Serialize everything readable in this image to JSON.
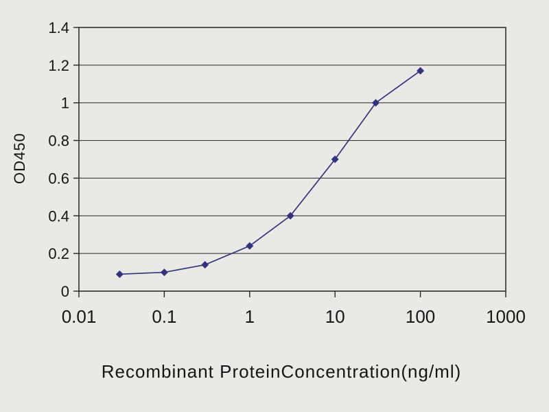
{
  "chart_data": {
    "type": "line",
    "title": "",
    "xlabel": "Recombinant ProteinConcentration(ng/ml)",
    "ylabel": "OD450",
    "xscale": "log",
    "xlim": [
      0.01,
      1000
    ],
    "ylim": [
      0,
      1.4
    ],
    "grid": "horizontal",
    "legend": "none",
    "xticks": {
      "values": [
        0.01,
        0.1,
        1,
        10,
        100,
        1000
      ],
      "labels": [
        "0.01",
        "0.1",
        "1",
        "10",
        "100",
        "1000"
      ]
    },
    "yticks": {
      "values": [
        0,
        0.2,
        0.4,
        0.6,
        0.8,
        1.0,
        1.2,
        1.4
      ],
      "labels": [
        "0",
        "0.2",
        "0.4",
        "0.6",
        "0.8",
        "1",
        "1.2",
        "1.4"
      ]
    },
    "series": [
      {
        "name": "OD450",
        "marker": "diamond",
        "color": "#32327e",
        "x": [
          0.03,
          0.1,
          0.3,
          1,
          3,
          10,
          30,
          100
        ],
        "y": [
          0.09,
          0.1,
          0.14,
          0.24,
          0.4,
          0.7,
          1.0,
          1.17
        ]
      }
    ],
    "colors": {
      "background": "#e9e9e6",
      "axis": "#222222",
      "line": "#32327e"
    }
  }
}
